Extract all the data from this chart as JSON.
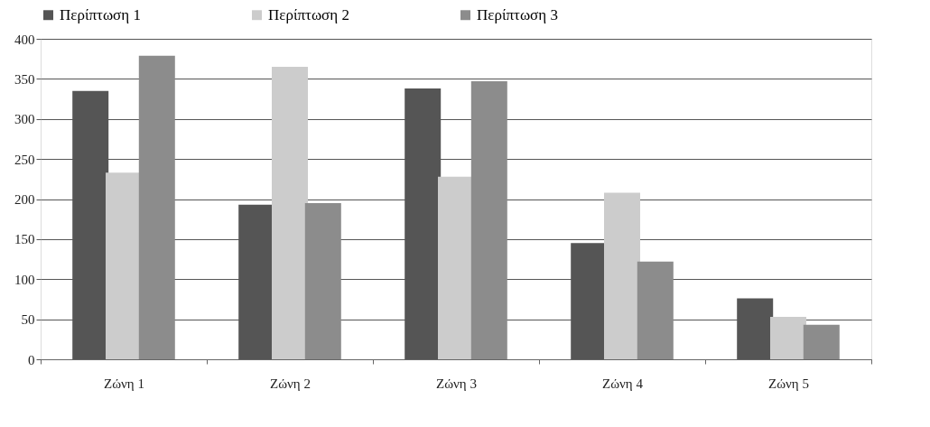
{
  "chart_data": {
    "type": "bar",
    "categories": [
      "Ζώνη 1",
      "Ζώνη 2",
      "Ζώνη 3",
      "Ζώνη 4",
      "Ζώνη 5"
    ],
    "series": [
      {
        "name": "Περίπτωση 1",
        "color": "#555555",
        "values": [
          335,
          193,
          338,
          145,
          76
        ]
      },
      {
        "name": "Περίπτωση 2",
        "color": "#cccccc",
        "values": [
          233,
          365,
          228,
          208,
          53
        ]
      },
      {
        "name": "Περίπτωση 3",
        "color": "#8c8c8c",
        "values": [
          379,
          195,
          347,
          122,
          43
        ]
      }
    ],
    "ylim": [
      0,
      400
    ],
    "yticks": [
      0,
      50,
      100,
      150,
      200,
      250,
      300,
      350,
      400
    ],
    "grid": "y",
    "legend": "top"
  }
}
